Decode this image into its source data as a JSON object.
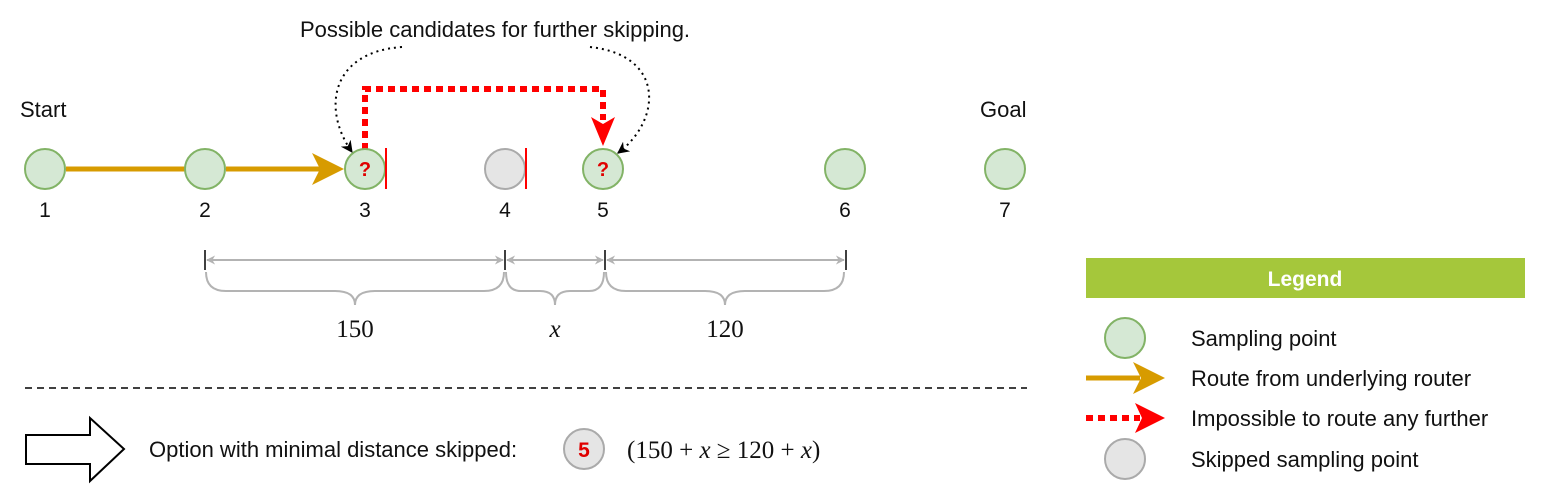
{
  "diagram": {
    "annotation": "Possible candidates for further skipping.",
    "start_label": "Start",
    "goal_label": "Goal",
    "nodes": [
      {
        "id": "1",
        "state": "sampling"
      },
      {
        "id": "2",
        "state": "sampling"
      },
      {
        "id": "3",
        "state": "sampling",
        "mark": "?"
      },
      {
        "id": "4",
        "state": "skipped"
      },
      {
        "id": "5",
        "state": "sampling",
        "mark": "?"
      },
      {
        "id": "6",
        "state": "sampling"
      },
      {
        "id": "7",
        "state": "sampling"
      }
    ],
    "distances": [
      {
        "label": "150",
        "italic": false
      },
      {
        "label": "x",
        "italic": true
      },
      {
        "label": "120",
        "italic": false
      }
    ]
  },
  "conclusion": {
    "text": "Option with minimal distance skipped:",
    "selected_node": "5",
    "formula": {
      "open": "(150 + ",
      "var1": "x",
      "mid": " ≥ 120 + ",
      "var2": "x",
      "close": ")"
    }
  },
  "legend": {
    "title": "Legend",
    "items": [
      {
        "symbol": "sampling-point",
        "label": "Sampling point"
      },
      {
        "symbol": "route-arrow",
        "label": "Route from underlying router"
      },
      {
        "symbol": "impossible-arrow",
        "label": "Impossible to route any further"
      },
      {
        "symbol": "skipped-point",
        "label": "Skipped sampling point"
      }
    ]
  },
  "colors": {
    "sampling_fill": "#d5e8d4",
    "sampling_stroke": "#82b366",
    "skipped_fill": "#e5e5e5",
    "skipped_stroke": "#aaaaaa",
    "route": "#d79b00",
    "impossible": "#ff0000",
    "legend_header": "#a5c73b",
    "dimension": "#b3b3b3"
  }
}
